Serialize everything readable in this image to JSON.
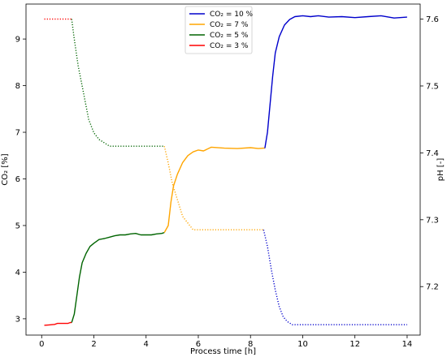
{
  "chart_data": {
    "type": "line",
    "xlabel": "Process time [h]",
    "ylabel_left": "CO₂ [%]",
    "ylabel_right": "pH [-]",
    "xlim": [
      -0.6,
      14.5
    ],
    "ylim_left": [
      2.65,
      9.75
    ],
    "ylim_right": [
      7.1275,
      7.6225
    ],
    "x_ticks": [
      0,
      2,
      4,
      6,
      8,
      10,
      12,
      14
    ],
    "y_ticks_left": [
      3,
      4,
      5,
      6,
      7,
      8,
      9
    ],
    "y_ticks_right": [
      7.2,
      7.3,
      7.4,
      7.5,
      7.6
    ],
    "grid": false,
    "legend_position": "top-center",
    "legend": [
      {
        "label": "CO₂ = 10 %",
        "color": "#0000cc"
      },
      {
        "label": "CO₂ = 7 %",
        "color": "#ffa500"
      },
      {
        "label": "CO₂ = 5 %",
        "color": "#006400"
      },
      {
        "label": "CO₂ = 3 %",
        "color": "#ff0000"
      }
    ],
    "series": [
      {
        "name": "CO₂ = 3 %",
        "axis": "left",
        "style": "solid",
        "color": "#ff0000",
        "x": [
          0.1,
          0.3,
          0.5,
          0.6,
          0.8,
          1.0,
          1.1,
          1.15
        ],
        "y": [
          2.86,
          2.87,
          2.88,
          2.9,
          2.9,
          2.9,
          2.92,
          2.92
        ]
      },
      {
        "name": "CO₂ = 5 %",
        "axis": "left",
        "style": "solid",
        "color": "#006400",
        "x": [
          1.15,
          1.25,
          1.35,
          1.45,
          1.55,
          1.7,
          1.85,
          2.0,
          2.2,
          2.4,
          2.6,
          2.8,
          3.0,
          3.2,
          3.4,
          3.6,
          3.8,
          4.0,
          4.2,
          4.4,
          4.6,
          4.7
        ],
        "y": [
          2.92,
          3.1,
          3.5,
          3.9,
          4.2,
          4.4,
          4.55,
          4.62,
          4.7,
          4.72,
          4.75,
          4.78,
          4.8,
          4.8,
          4.82,
          4.83,
          4.8,
          4.8,
          4.8,
          4.82,
          4.83,
          4.85
        ]
      },
      {
        "name": "CO₂ = 7 %",
        "axis": "left",
        "style": "solid",
        "color": "#ffa500",
        "x": [
          4.7,
          4.85,
          4.95,
          5.05,
          5.2,
          5.4,
          5.6,
          5.8,
          6.0,
          6.2,
          6.5,
          7.0,
          7.5,
          8.0,
          8.3,
          8.5,
          8.55
        ],
        "y": [
          4.85,
          5.0,
          5.5,
          5.85,
          6.1,
          6.35,
          6.5,
          6.58,
          6.62,
          6.6,
          6.68,
          6.66,
          6.65,
          6.67,
          6.65,
          6.66,
          6.66
        ]
      },
      {
        "name": "CO₂ = 10 %",
        "axis": "left",
        "style": "solid",
        "color": "#0000cc",
        "x": [
          8.55,
          8.65,
          8.75,
          8.85,
          8.95,
          9.1,
          9.3,
          9.5,
          9.7,
          10.0,
          10.3,
          10.6,
          11.0,
          11.5,
          12.0,
          12.5,
          13.0,
          13.5,
          14.0
        ],
        "y": [
          6.66,
          7.0,
          7.6,
          8.2,
          8.7,
          9.05,
          9.3,
          9.42,
          9.48,
          9.5,
          9.48,
          9.5,
          9.47,
          9.48,
          9.46,
          9.48,
          9.5,
          9.45,
          9.47
        ]
      },
      {
        "name": "pH (CO₂ = 3 %)",
        "axis": "right",
        "style": "dotted",
        "color": "#ff0000",
        "x": [
          0.1,
          1.15
        ],
        "y": [
          7.6,
          7.6
        ]
      },
      {
        "name": "pH (CO₂ = 5 %)",
        "axis": "right",
        "style": "dotted",
        "color": "#006400",
        "x": [
          1.15,
          1.25,
          1.4,
          1.6,
          1.8,
          2.0,
          2.2,
          2.4,
          2.6,
          3.0,
          3.5,
          4.0,
          4.5,
          4.7
        ],
        "y": [
          7.6,
          7.57,
          7.53,
          7.49,
          7.45,
          7.43,
          7.42,
          7.415,
          7.41,
          7.41,
          7.41,
          7.41,
          7.41,
          7.41
        ]
      },
      {
        "name": "pH (CO₂ = 7 %)",
        "axis": "right",
        "style": "dotted",
        "color": "#ffa500",
        "x": [
          4.7,
          4.85,
          5.0,
          5.2,
          5.4,
          5.6,
          5.8,
          6.2,
          7.0,
          8.0,
          8.5
        ],
        "y": [
          7.41,
          7.385,
          7.355,
          7.33,
          7.305,
          7.295,
          7.285,
          7.285,
          7.285,
          7.285,
          7.285
        ]
      },
      {
        "name": "pH (CO₂ = 10 %)",
        "axis": "right",
        "style": "dotted",
        "color": "#0000cc",
        "x": [
          8.5,
          8.65,
          8.8,
          8.95,
          9.1,
          9.25,
          9.4,
          9.6,
          10.0,
          11.0,
          12.0,
          13.0,
          14.0
        ],
        "y": [
          7.285,
          7.26,
          7.225,
          7.195,
          7.17,
          7.155,
          7.148,
          7.143,
          7.143,
          7.143,
          7.143,
          7.143,
          7.143
        ]
      }
    ]
  }
}
